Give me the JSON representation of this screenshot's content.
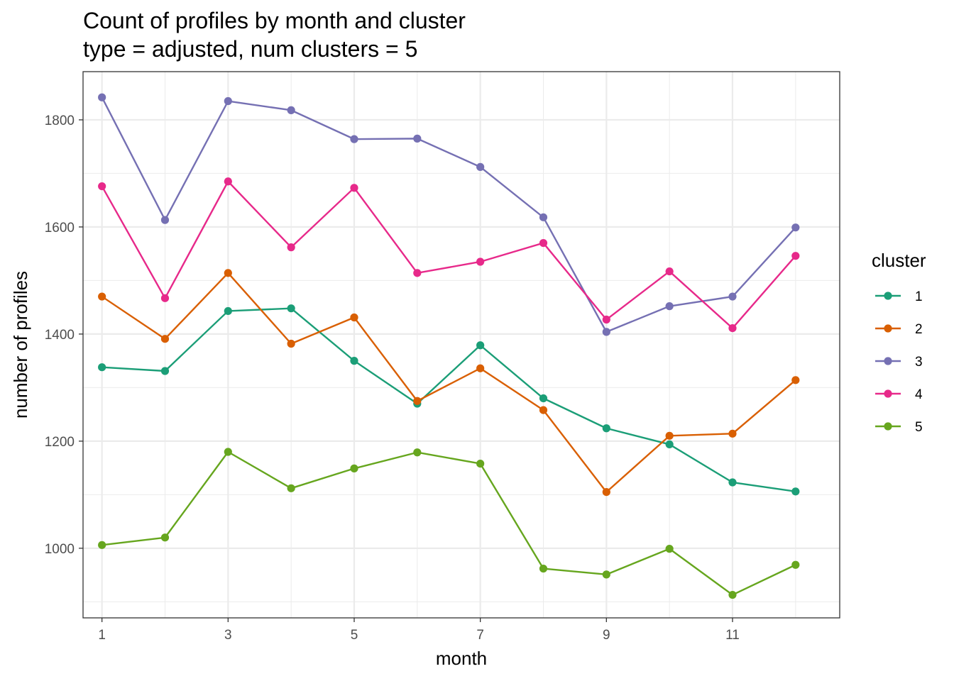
{
  "chart_data": {
    "type": "line",
    "title": "Count of profiles by month and cluster",
    "subtitle": "type = adjusted, num clusters = 5",
    "xlabel": "month",
    "ylabel": "number of profiles",
    "x": [
      1,
      2,
      3,
      4,
      5,
      6,
      7,
      8,
      9,
      10,
      11,
      12
    ],
    "xlim": [
      0.7,
      12.7
    ],
    "ylim": [
      870,
      1890
    ],
    "x_ticks": [
      1,
      3,
      5,
      7,
      9,
      11
    ],
    "x_tick_labels": [
      "1",
      "3",
      "5",
      "7",
      "9",
      "11"
    ],
    "y_ticks": [
      1000,
      1200,
      1400,
      1600,
      1800
    ],
    "y_tick_labels": [
      "1000",
      "1200",
      "1400",
      "1600",
      "1800"
    ],
    "grid": true,
    "legend": {
      "title": "cluster",
      "position": "right"
    },
    "series": [
      {
        "name": "1",
        "color": "#1b9e77",
        "values": [
          1338,
          1331,
          1443,
          1448,
          1350,
          1270,
          1379,
          1280,
          1224,
          1194,
          1123,
          1106
        ]
      },
      {
        "name": "2",
        "color": "#d95f02",
        "values": [
          1470,
          1391,
          1514,
          1382,
          1431,
          1275,
          1336,
          1258,
          1105,
          1210,
          1214,
          1314
        ]
      },
      {
        "name": "3",
        "color": "#7570b3",
        "values": [
          1842,
          1613,
          1835,
          1818,
          1764,
          1765,
          1712,
          1618,
          1404,
          1452,
          1470,
          1599
        ]
      },
      {
        "name": "4",
        "color": "#e7298a",
        "values": [
          1676,
          1467,
          1685,
          1562,
          1673,
          1514,
          1535,
          1570,
          1427,
          1517,
          1411,
          1546
        ]
      },
      {
        "name": "5",
        "color": "#66a61e",
        "values": [
          1006,
          1020,
          1180,
          1112,
          1149,
          1179,
          1158,
          962,
          951,
          999,
          913,
          969
        ]
      }
    ]
  }
}
